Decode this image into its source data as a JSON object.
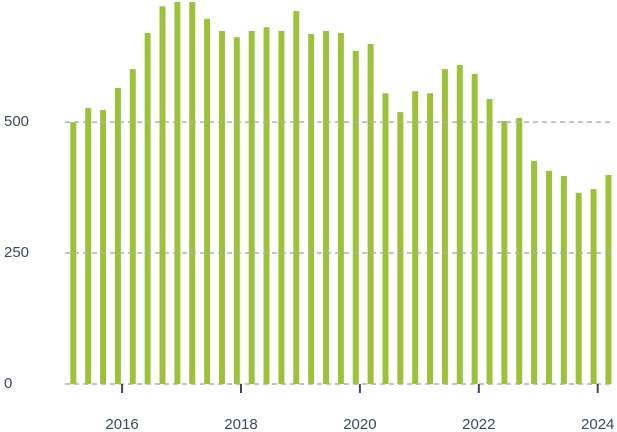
{
  "chart_data": {
    "type": "bar",
    "color": "#9cc23a",
    "x": [
      2015.18,
      2015.43,
      2015.68,
      2015.93,
      2016.18,
      2016.43,
      2016.68,
      2016.93,
      2017.18,
      2017.43,
      2017.68,
      2017.93,
      2018.18,
      2018.43,
      2018.68,
      2018.93,
      2019.18,
      2019.43,
      2019.68,
      2019.93,
      2020.18,
      2020.43,
      2020.68,
      2020.93,
      2021.18,
      2021.43,
      2021.68,
      2021.93,
      2022.18,
      2022.43,
      2022.68,
      2022.93,
      2023.18,
      2023.43,
      2023.68,
      2023.93,
      2024.18
    ],
    "values": [
      500,
      527,
      523,
      565,
      601,
      670,
      721,
      729,
      729,
      697,
      674,
      662,
      674,
      681,
      674,
      712,
      668,
      674,
      670,
      636,
      649,
      555,
      519,
      559,
      555,
      601,
      609,
      592,
      544,
      502,
      508,
      426,
      407,
      397,
      365,
      372,
      399
    ],
    "xlim": [
      2015.04,
      2024.24
    ],
    "xticks": [
      2016,
      2018,
      2020,
      2022,
      2024
    ],
    "ylim": [
      0,
      733
    ],
    "yticks": [
      0,
      250,
      500
    ],
    "grid": true
  }
}
